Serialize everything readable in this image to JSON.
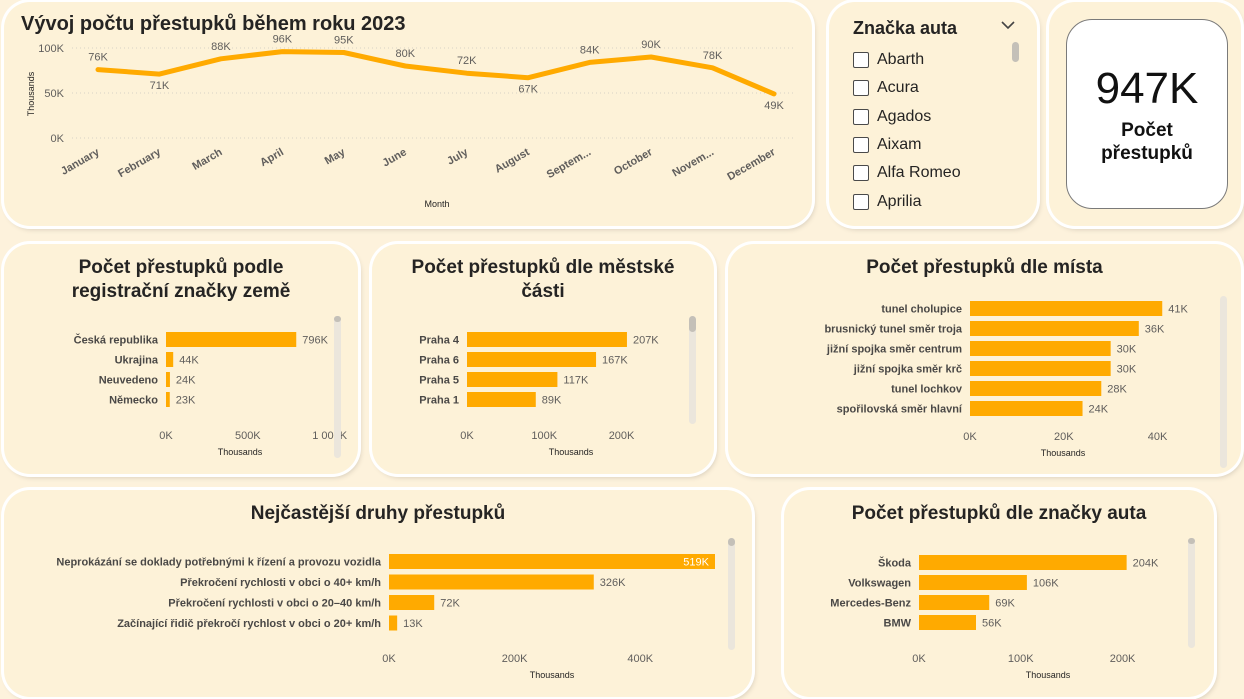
{
  "colors": {
    "accent": "#ffaa00",
    "background": "#fdf2dc",
    "card": "#fdf2d8"
  },
  "slicer": {
    "title": "Značka auta",
    "items": [
      {
        "label": "Abarth"
      },
      {
        "label": "Acura"
      },
      {
        "label": "Agados"
      },
      {
        "label": "Aixam"
      },
      {
        "label": "Alfa Romeo"
      },
      {
        "label": "Aprilia"
      }
    ]
  },
  "kpi": {
    "value": "947K",
    "label": "Počet přestupků"
  },
  "charts": {
    "line": {
      "title": "Vývoj počtu přestupků během roku 2023",
      "xlabel": "Month",
      "ylabel": "Thousands",
      "yticks": [
        "100K",
        "50K",
        "0K"
      ]
    },
    "country": {
      "title": "Počet přestupků podle registrační značky země",
      "xlabel": "Thousands",
      "xticks": [
        "0K",
        "500K",
        "1 000K"
      ]
    },
    "district": {
      "title": "Počet přestupků dle městské části",
      "xlabel": "Thousands",
      "xticks": [
        "0K",
        "100K",
        "200K"
      ]
    },
    "place": {
      "title": "Počet přestupků dle místa",
      "xlabel": "Thousands",
      "xticks": [
        "0K",
        "20K",
        "40K"
      ]
    },
    "types": {
      "title": "Nejčastější druhy přestupků",
      "xlabel": "Thousands",
      "xticks": [
        "0K",
        "200K",
        "400K"
      ]
    },
    "brand": {
      "title": "Počet přestupků dle značky auta",
      "xlabel": "Thousands",
      "xticks": [
        "0K",
        "100K",
        "200K"
      ]
    }
  },
  "chart_data": [
    {
      "id": "line",
      "type": "line",
      "title": "Vývoj počtu přestupků během roku 2023",
      "xlabel": "Month",
      "ylabel": "Thousands",
      "ylim": [
        0,
        100
      ],
      "categories": [
        "January",
        "February",
        "March",
        "April",
        "May",
        "June",
        "July",
        "August",
        "Septem...",
        "October",
        "Novem...",
        "December"
      ],
      "values": [
        76,
        71,
        88,
        96,
        95,
        80,
        72,
        67,
        84,
        90,
        78,
        49
      ],
      "labels": [
        "76K",
        "71K",
        "88K",
        "96K",
        "95K",
        "80K",
        "72K",
        "67K",
        "84K",
        "90K",
        "78K",
        "49K"
      ],
      "color": "#ffaa00",
      "grid": true
    },
    {
      "id": "country",
      "type": "bar",
      "title": "Počet přestupků podle registrační značky země",
      "xlabel": "Thousands",
      "xlim": [
        0,
        1100
      ],
      "categories": [
        "Česká republika",
        "Ukrajina",
        "Neuvedeno",
        "Německo"
      ],
      "values": [
        796,
        44,
        24,
        23
      ],
      "labels": [
        "796K",
        "44K",
        "24K",
        "23K"
      ]
    },
    {
      "id": "district",
      "type": "bar",
      "title": "Počet přestupků dle městské části",
      "xlabel": "Thousands",
      "xlim": [
        0,
        220
      ],
      "categories": [
        "Praha 4",
        "Praha 6",
        "Praha 5",
        "Praha 1"
      ],
      "values": [
        207,
        167,
        117,
        89
      ],
      "labels": [
        "207K",
        "167K",
        "117K",
        "89K"
      ]
    },
    {
      "id": "place",
      "type": "bar",
      "title": "Počet přestupků dle místa",
      "xlabel": "Thousands",
      "xlim": [
        0,
        45
      ],
      "categories": [
        "tunel cholupice",
        "brusnický tunel směr troja",
        "jižní spojka směr centrum",
        "jižní spojka směr krč",
        "tunel lochkov",
        "spořilovská směr hlavní"
      ],
      "values": [
        41,
        36,
        30,
        30,
        28,
        24
      ],
      "labels": [
        "41K",
        "36K",
        "30K",
        "30K",
        "28K",
        "24K"
      ]
    },
    {
      "id": "types",
      "type": "bar",
      "title": "Nejčastější druhy přestupků",
      "xlabel": "Thousands",
      "xlim": [
        0,
        519
      ],
      "categories": [
        "Neprokázání se doklady potřebnými k řízení a provozu vozidla",
        "Překročení rychlosti v obci o 40+ km/h",
        "Překročení rychlosti v obci o 20–40 km/h",
        "Začínající řidič překročí rychlost v obci o 20+ km/h"
      ],
      "values": [
        519,
        326,
        72,
        13
      ],
      "labels": [
        "519K",
        "326K",
        "72K",
        "13K"
      ]
    },
    {
      "id": "brand",
      "type": "bar",
      "title": "Počet přestupků dle značky auta",
      "xlabel": "Thousands",
      "xlim": [
        0,
        225
      ],
      "categories": [
        "Škoda",
        "Volkswagen",
        "Mercedes-Benz",
        "BMW"
      ],
      "values": [
        204,
        106,
        69,
        56
      ],
      "labels": [
        "204K",
        "106K",
        "69K",
        "56K"
      ]
    }
  ]
}
